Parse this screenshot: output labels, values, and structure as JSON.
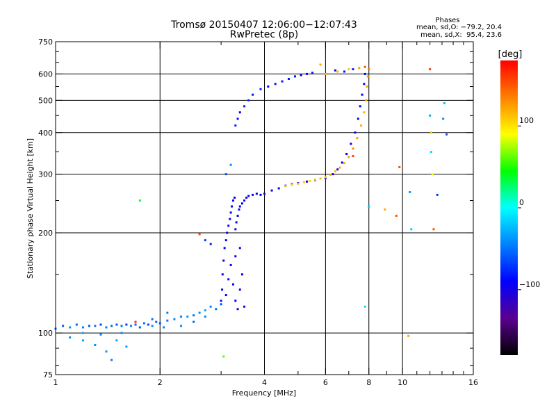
{
  "chart_data": {
    "type": "scatter",
    "title": "Tromsø 20150407 12:06:00−12:07:43",
    "subtitle": "RwPretec (8p)",
    "xlabel": "Frequency [MHz]",
    "ylabel": "Stationary phase Virtual Height [km]",
    "x_scale": "log",
    "y_scale": "log",
    "xlim": [
      1,
      16
    ],
    "ylim": [
      75,
      750
    ],
    "x_ticks": [
      "1",
      "2",
      "4",
      "6",
      "8",
      "10",
      "16"
    ],
    "y_ticks": [
      "75",
      "100",
      "200",
      "300",
      "400",
      "500",
      "600",
      "750"
    ],
    "x_grid": [
      2,
      4,
      6,
      8,
      10
    ],
    "y_grid": [
      100,
      200,
      300,
      400,
      500,
      600
    ],
    "grid": true,
    "stats": {
      "heading": "Phases",
      "line_o": "mean, sd,O: −79.2, 20.4",
      "line_x": "mean, sd,X:  95.4, 23.6"
    },
    "colorbar": {
      "label": "[deg]",
      "ticks": [
        "100",
        "0",
        "−100"
      ],
      "tick_values": [
        100,
        0,
        -100
      ],
      "range": [
        -180,
        180
      ],
      "colors": [
        "#000000",
        "#5a0090",
        "#0000ff",
        "#0080ff",
        "#00ffff",
        "#00ff00",
        "#ffff00",
        "#ff8000",
        "#ff0000"
      ]
    },
    "series": [
      {
        "values": [
          [
            1.0,
            103,
            -50
          ],
          [
            1.05,
            105,
            -60
          ],
          [
            1.1,
            104,
            -40
          ],
          [
            1.15,
            106,
            -55
          ],
          [
            1.2,
            104,
            -45
          ],
          [
            1.25,
            105,
            -60
          ],
          [
            1.3,
            105,
            -50
          ],
          [
            1.35,
            106,
            -65
          ],
          [
            1.4,
            104,
            -45
          ],
          [
            1.45,
            105,
            -55
          ],
          [
            1.5,
            106,
            -60
          ],
          [
            1.55,
            105,
            -50
          ],
          [
            1.6,
            106,
            -70
          ],
          [
            1.65,
            105,
            -45
          ],
          [
            1.7,
            106,
            -55
          ],
          [
            1.75,
            104,
            -60
          ],
          [
            1.8,
            107,
            -50
          ],
          [
            1.85,
            106,
            -65
          ],
          [
            1.9,
            105,
            -40
          ],
          [
            1.95,
            108,
            -55
          ],
          [
            2.0,
            107,
            -60
          ],
          [
            2.05,
            104,
            -45
          ],
          [
            2.1,
            109,
            -50
          ],
          [
            2.2,
            110,
            -40
          ],
          [
            2.3,
            112,
            -45
          ],
          [
            2.4,
            112,
            -35
          ],
          [
            2.5,
            113,
            -50
          ],
          [
            2.6,
            115,
            -40
          ],
          [
            2.7,
            117,
            -30
          ],
          [
            2.8,
            120,
            -45
          ],
          [
            1.1,
            97,
            -40
          ],
          [
            1.2,
            95,
            -30
          ],
          [
            1.3,
            92,
            -40
          ],
          [
            1.4,
            88,
            -35
          ],
          [
            1.45,
            83,
            -45
          ],
          [
            1.5,
            95,
            -30
          ],
          [
            1.6,
            91,
            -35
          ],
          [
            1.2,
            100,
            -30
          ],
          [
            1.35,
            99,
            -45
          ],
          [
            1.55,
            100,
            -40
          ],
          [
            1.7,
            108,
            160
          ],
          [
            1.9,
            110,
            -50
          ],
          [
            2.1,
            115,
            -45
          ],
          [
            2.3,
            105,
            -40
          ],
          [
            2.5,
            108,
            -55
          ],
          [
            2.7,
            112,
            -40
          ],
          [
            2.9,
            118,
            -50
          ],
          [
            3.0,
            122,
            -60
          ]
        ]
      },
      {
        "values": [
          [
            3.0,
            125,
            -85
          ],
          [
            3.02,
            135,
            -90
          ],
          [
            3.03,
            150,
            -95
          ],
          [
            3.05,
            165,
            -100
          ],
          [
            3.07,
            180,
            -90
          ],
          [
            3.1,
            190,
            -95
          ],
          [
            3.12,
            200,
            -100
          ],
          [
            3.15,
            210,
            -95
          ],
          [
            3.18,
            220,
            -90
          ],
          [
            3.2,
            230,
            -95
          ],
          [
            3.22,
            240,
            -100
          ],
          [
            3.25,
            250,
            -95
          ],
          [
            3.28,
            255,
            -90
          ],
          [
            3.3,
            205,
            -100
          ],
          [
            3.32,
            215,
            -95
          ],
          [
            3.35,
            225,
            -90
          ],
          [
            3.38,
            235,
            -100
          ],
          [
            3.4,
            240,
            -95
          ],
          [
            3.45,
            245,
            -90
          ],
          [
            3.5,
            250,
            -100
          ],
          [
            3.55,
            255,
            -95
          ],
          [
            3.6,
            258,
            -90
          ],
          [
            3.7,
            260,
            -100
          ],
          [
            3.8,
            262,
            -95
          ],
          [
            3.9,
            260,
            -90
          ],
          [
            4.0,
            262,
            -100
          ],
          [
            4.2,
            268,
            -95
          ],
          [
            4.4,
            272,
            -90
          ],
          [
            4.6,
            277,
            -100
          ],
          [
            4.8,
            280,
            -95
          ],
          [
            5.0,
            282,
            -90
          ],
          [
            5.3,
            285,
            -100
          ],
          [
            5.6,
            288,
            -95
          ],
          [
            6.0,
            292,
            -90
          ],
          [
            6.3,
            300,
            -95
          ],
          [
            6.5,
            310,
            -100
          ],
          [
            6.7,
            325,
            -95
          ],
          [
            6.9,
            345,
            -90
          ],
          [
            7.1,
            370,
            -95
          ],
          [
            7.3,
            400,
            -100
          ],
          [
            7.45,
            440,
            -95
          ],
          [
            7.55,
            480,
            -90
          ],
          [
            7.65,
            520,
            -95
          ],
          [
            7.75,
            560,
            -100
          ],
          [
            7.8,
            600,
            -95
          ],
          [
            3.1,
            130,
            -95
          ],
          [
            3.15,
            145,
            -90
          ],
          [
            3.2,
            160,
            -100
          ],
          [
            3.25,
            140,
            -95
          ],
          [
            3.3,
            125,
            -90
          ],
          [
            3.35,
            118,
            -100
          ],
          [
            3.4,
            135,
            -95
          ],
          [
            3.45,
            150,
            -90
          ],
          [
            3.5,
            120,
            -95
          ],
          [
            3.3,
            170,
            -100
          ],
          [
            3.4,
            180,
            -95
          ],
          [
            3.3,
            420,
            -80
          ],
          [
            3.35,
            440,
            -85
          ],
          [
            3.4,
            460,
            -90
          ],
          [
            3.5,
            480,
            -80
          ],
          [
            3.6,
            500,
            -75
          ],
          [
            3.7,
            520,
            -85
          ],
          [
            3.9,
            540,
            -80
          ],
          [
            4.1,
            550,
            -90
          ],
          [
            4.3,
            560,
            -85
          ],
          [
            4.5,
            570,
            -80
          ],
          [
            4.7,
            580,
            -85
          ],
          [
            4.9,
            590,
            -80
          ],
          [
            5.1,
            595,
            -90
          ],
          [
            5.3,
            600,
            -85
          ],
          [
            5.5,
            605,
            -80
          ],
          [
            6.4,
            615,
            -90
          ],
          [
            6.8,
            610,
            -85
          ],
          [
            7.2,
            620,
            -80
          ]
        ]
      },
      {
        "values": [
          [
            4.6,
            276,
            105
          ],
          [
            4.8,
            279,
            110
          ],
          [
            5.0,
            281,
            115
          ],
          [
            5.2,
            284,
            110
          ],
          [
            5.4,
            286,
            105
          ],
          [
            5.6,
            289,
            110
          ],
          [
            5.8,
            291,
            115
          ],
          [
            6.0,
            294,
            110
          ],
          [
            6.2,
            299,
            120
          ],
          [
            6.4,
            306,
            115
          ],
          [
            6.6,
            314,
            120
          ],
          [
            6.8,
            324,
            115
          ],
          [
            7.0,
            338,
            125
          ],
          [
            7.2,
            358,
            130
          ],
          [
            7.4,
            385,
            125
          ],
          [
            7.6,
            420,
            120
          ],
          [
            7.75,
            460,
            115
          ],
          [
            7.85,
            500,
            120
          ],
          [
            7.9,
            550,
            125
          ],
          [
            7.95,
            590,
            130
          ],
          [
            8.0,
            620,
            140
          ],
          [
            6.0,
            600,
            120
          ],
          [
            6.5,
            610,
            115
          ],
          [
            7.0,
            620,
            110
          ],
          [
            7.5,
            625,
            125
          ],
          [
            7.8,
            630,
            150
          ],
          [
            7.2,
            340,
            155
          ]
        ]
      },
      {
        "values": [
          [
            1.75,
            250,
            30
          ],
          [
            2.6,
            198,
            150
          ],
          [
            2.7,
            190,
            -70
          ],
          [
            2.8,
            185,
            -80
          ],
          [
            3.1,
            300,
            -60
          ],
          [
            3.2,
            320,
            -40
          ],
          [
            5.8,
            640,
            120
          ],
          [
            8.9,
            235,
            120
          ],
          [
            9.6,
            225,
            150
          ],
          [
            9.8,
            315,
            150
          ],
          [
            10.5,
            265,
            -35
          ],
          [
            10.6,
            205,
            -15
          ],
          [
            10.4,
            98,
            120
          ],
          [
            12.0,
            620,
            160
          ],
          [
            12.0,
            450,
            -30
          ],
          [
            12.1,
            400,
            110
          ],
          [
            12.1,
            350,
            -10
          ],
          [
            12.2,
            300,
            90
          ],
          [
            12.3,
            205,
            150
          ],
          [
            13.1,
            440,
            -40
          ],
          [
            13.2,
            490,
            -20
          ],
          [
            13.4,
            395,
            -60
          ],
          [
            8.0,
            240,
            -20
          ],
          [
            7.8,
            120,
            -10
          ],
          [
            12.6,
            260,
            -70
          ],
          [
            3.05,
            85,
            60
          ]
        ]
      }
    ]
  }
}
